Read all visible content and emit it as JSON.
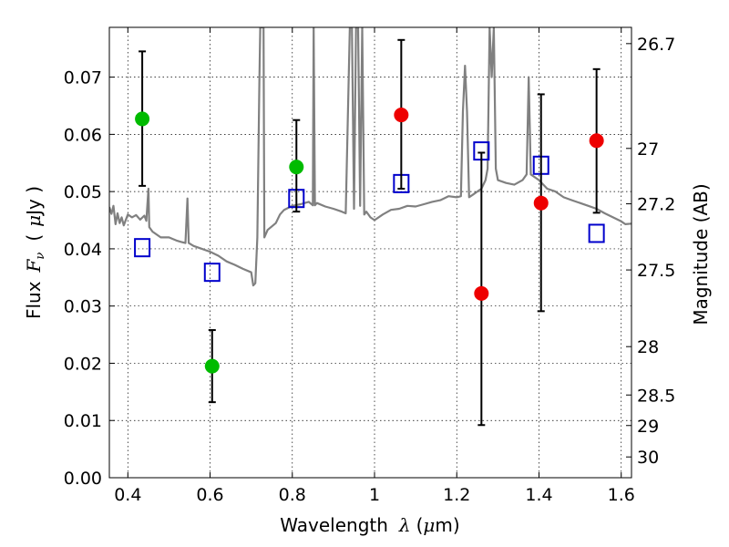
{
  "chart_data": {
    "type": "scatter",
    "xlabel": "Wavelength",
    "xlabel_symbol": "λ",
    "xlabel_unit_open": "(",
    "xlabel_unit_mu": "μ",
    "xlabel_unit_rest": "m)",
    "ylabel": "Flux",
    "ylabel_symbol": "F",
    "ylabel_subscript": "ν",
    "ylabel_unit_open": "(",
    "ylabel_unit_mu": "μ",
    "ylabel_unit_rest": "Jy )",
    "y2label": "Magnitude (AB)",
    "xlim": [
      0.355,
      1.625
    ],
    "ylim": [
      0.0,
      0.0787
    ],
    "grid": true,
    "x_ticks": [
      {
        "value": 0.4,
        "label": "0.4"
      },
      {
        "value": 0.6,
        "label": "0.6"
      },
      {
        "value": 0.8,
        "label": "0.8"
      },
      {
        "value": 1.0,
        "label": "1"
      },
      {
        "value": 1.2,
        "label": "1.2"
      },
      {
        "value": 1.4,
        "label": "1.4"
      },
      {
        "value": 1.6,
        "label": "1.6"
      }
    ],
    "y_ticks": [
      {
        "value": 0.0,
        "label": "0.00"
      },
      {
        "value": 0.01,
        "label": "0.01"
      },
      {
        "value": 0.02,
        "label": "0.02"
      },
      {
        "value": 0.03,
        "label": "0.03"
      },
      {
        "value": 0.04,
        "label": "0.04"
      },
      {
        "value": 0.05,
        "label": "0.05"
      },
      {
        "value": 0.06,
        "label": "0.06"
      },
      {
        "value": 0.07,
        "label": "0.07"
      }
    ],
    "y2_ticks": [
      {
        "value": 26.7,
        "label": "26.7"
      },
      {
        "value": 27.0,
        "label": "27"
      },
      {
        "value": 27.2,
        "label": "27.2"
      },
      {
        "value": 27.5,
        "label": "27.5"
      },
      {
        "value": 28.0,
        "label": "28"
      },
      {
        "value": 28.5,
        "label": "28.5"
      },
      {
        "value": 29.0,
        "label": "29"
      },
      {
        "value": 30.0,
        "label": "30"
      }
    ],
    "series": [
      {
        "name": "model-spectrum",
        "kind": "line",
        "color": "#808080",
        "points": [
          [
            0.355,
            0.0473
          ],
          [
            0.36,
            0.0461
          ],
          [
            0.365,
            0.0475
          ],
          [
            0.37,
            0.0443
          ],
          [
            0.375,
            0.0462
          ],
          [
            0.38,
            0.0445
          ],
          [
            0.385,
            0.0455
          ],
          [
            0.39,
            0.0441
          ],
          [
            0.4,
            0.046
          ],
          [
            0.41,
            0.0455
          ],
          [
            0.42,
            0.0459
          ],
          [
            0.43,
            0.0451
          ],
          [
            0.44,
            0.0458
          ],
          [
            0.445,
            0.0449
          ],
          [
            0.45,
            0.0505
          ],
          [
            0.452,
            0.0438
          ],
          [
            0.46,
            0.043
          ],
          [
            0.48,
            0.042
          ],
          [
            0.5,
            0.042
          ],
          [
            0.52,
            0.0414
          ],
          [
            0.53,
            0.0412
          ],
          [
            0.54,
            0.041
          ],
          [
            0.545,
            0.0488
          ],
          [
            0.548,
            0.041
          ],
          [
            0.56,
            0.0405
          ],
          [
            0.58,
            0.04
          ],
          [
            0.6,
            0.0395
          ],
          [
            0.62,
            0.0388
          ],
          [
            0.64,
            0.0378
          ],
          [
            0.66,
            0.0372
          ],
          [
            0.68,
            0.0365
          ],
          [
            0.7,
            0.0359
          ],
          [
            0.705,
            0.0336
          ],
          [
            0.71,
            0.034
          ],
          [
            0.715,
            0.042
          ],
          [
            0.72,
            0.07
          ],
          [
            0.722,
            0.0787
          ],
          [
            0.73,
            0.0787
          ],
          [
            0.732,
            0.042
          ],
          [
            0.74,
            0.0433
          ],
          [
            0.76,
            0.0445
          ],
          [
            0.77,
            0.046
          ],
          [
            0.78,
            0.0468
          ],
          [
            0.8,
            0.0475
          ],
          [
            0.82,
            0.0478
          ],
          [
            0.84,
            0.0482
          ],
          [
            0.85,
            0.0476
          ],
          [
            0.852,
            0.0787
          ],
          [
            0.855,
            0.0476
          ],
          [
            0.86,
            0.048
          ],
          [
            0.88,
            0.0474
          ],
          [
            0.9,
            0.047
          ],
          [
            0.92,
            0.0465
          ],
          [
            0.93,
            0.0462
          ],
          [
            0.94,
            0.0787
          ],
          [
            0.945,
            0.0787
          ],
          [
            0.95,
            0.047
          ],
          [
            0.955,
            0.0787
          ],
          [
            0.96,
            0.0787
          ],
          [
            0.965,
            0.0475
          ],
          [
            0.97,
            0.0787
          ],
          [
            0.975,
            0.046
          ],
          [
            0.98,
            0.0465
          ],
          [
            0.99,
            0.0455
          ],
          [
            1.0,
            0.045
          ],
          [
            1.02,
            0.046
          ],
          [
            1.04,
            0.0468
          ],
          [
            1.06,
            0.047
          ],
          [
            1.08,
            0.0475
          ],
          [
            1.1,
            0.0474
          ],
          [
            1.12,
            0.0478
          ],
          [
            1.14,
            0.0482
          ],
          [
            1.16,
            0.0485
          ],
          [
            1.18,
            0.0492
          ],
          [
            1.2,
            0.049
          ],
          [
            1.21,
            0.0492
          ],
          [
            1.215,
            0.064
          ],
          [
            1.22,
            0.072
          ],
          [
            1.225,
            0.064
          ],
          [
            1.23,
            0.049
          ],
          [
            1.24,
            0.0495
          ],
          [
            1.25,
            0.05
          ],
          [
            1.26,
            0.0505
          ],
          [
            1.27,
            0.052
          ],
          [
            1.275,
            0.054
          ],
          [
            1.28,
            0.0787
          ],
          [
            1.285,
            0.07
          ],
          [
            1.29,
            0.0787
          ],
          [
            1.295,
            0.054
          ],
          [
            1.3,
            0.052
          ],
          [
            1.32,
            0.0515
          ],
          [
            1.34,
            0.0512
          ],
          [
            1.36,
            0.052
          ],
          [
            1.37,
            0.053
          ],
          [
            1.375,
            0.07
          ],
          [
            1.38,
            0.053
          ],
          [
            1.4,
            0.052
          ],
          [
            1.42,
            0.0505
          ],
          [
            1.44,
            0.05
          ],
          [
            1.46,
            0.049
          ],
          [
            1.48,
            0.0485
          ],
          [
            1.5,
            0.048
          ],
          [
            1.52,
            0.0475
          ],
          [
            1.54,
            0.047
          ],
          [
            1.56,
            0.0462
          ],
          [
            1.58,
            0.0455
          ],
          [
            1.6,
            0.0448
          ],
          [
            1.61,
            0.0443
          ],
          [
            1.625,
            0.0444
          ]
        ]
      },
      {
        "name": "model-photometry",
        "kind": "marker",
        "marker": "open-square",
        "color": "#0000cc",
        "x": [
          0.435,
          0.605,
          0.81,
          1.065,
          1.26,
          1.405,
          1.54
        ],
        "y": [
          0.0402,
          0.0359,
          0.0488,
          0.0514,
          0.0571,
          0.0546,
          0.0427
        ]
      },
      {
        "name": "observed-green",
        "kind": "marker",
        "marker": "filled-circle",
        "color": "#00bb00",
        "x": [
          0.435,
          0.605,
          0.81
        ],
        "y": [
          0.0627,
          0.0195,
          0.0543
        ],
        "err_low": [
          0.051,
          0.0132,
          0.0465
        ],
        "err_high": [
          0.0745,
          0.0258,
          0.0625
        ]
      },
      {
        "name": "observed-red",
        "kind": "marker",
        "marker": "filled-circle",
        "color": "#ee0000",
        "x": [
          1.065,
          1.26,
          1.405,
          1.54
        ],
        "y": [
          0.0634,
          0.0322,
          0.048,
          0.0589
        ],
        "err_low": [
          0.0505,
          0.0092,
          0.0291,
          0.0463
        ],
        "err_high": [
          0.0765,
          0.0568,
          0.067,
          0.0714
        ]
      }
    ]
  }
}
